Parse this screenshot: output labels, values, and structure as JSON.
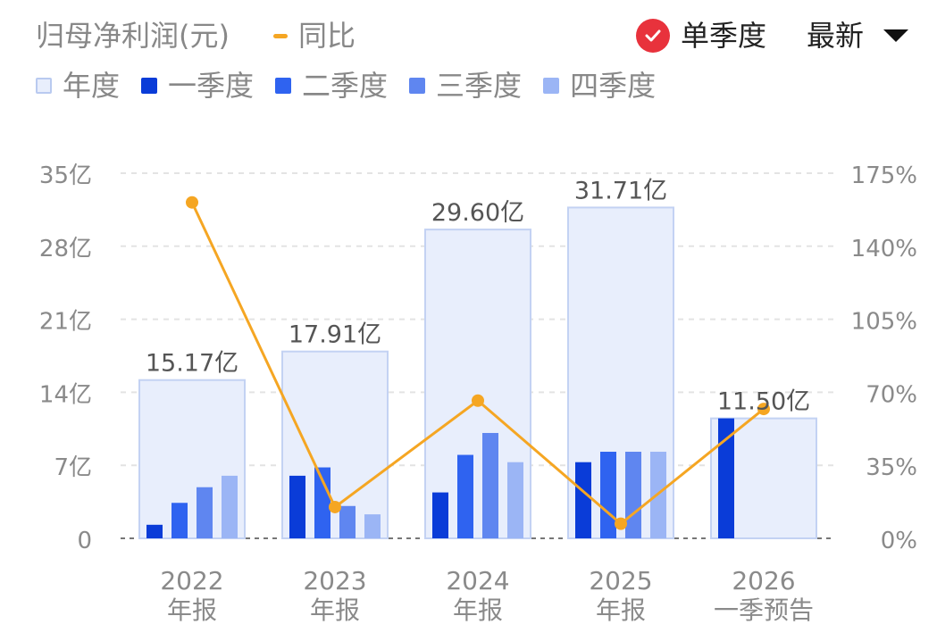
{
  "header": {
    "title": "归母净利润(元)",
    "yoy_legend": "同比",
    "single_quarter_label": "单季度",
    "latest_label": "最新"
  },
  "legend": [
    {
      "name": "年度",
      "color": "#E8EEFC",
      "border": "#B9CAF0"
    },
    {
      "name": "一季度",
      "color": "#0A3CD8"
    },
    {
      "name": "二季度",
      "color": "#2F63F0"
    },
    {
      "name": "三季度",
      "color": "#5F86F0"
    },
    {
      "name": "四季度",
      "color": "#9BB5F5"
    }
  ],
  "colors": {
    "annual_fill": "#E8EEFC",
    "annual_border": "#C3D2F3",
    "yoy_line": "#F5A623",
    "grid": "#E3E3E3",
    "axis_text": "#8A8A8A",
    "label_text": "#555555",
    "check_red": "#E8323C"
  },
  "chart_data": {
    "type": "bar",
    "categories": [
      {
        "year": "2022",
        "type": "年报"
      },
      {
        "year": "2023",
        "type": "年报"
      },
      {
        "year": "2024",
        "type": "年报"
      },
      {
        "year": "2025",
        "type": "年报"
      },
      {
        "year": "2026",
        "type": "一季预告"
      }
    ],
    "annual": [
      15.17,
      17.91,
      29.6,
      31.71,
      11.5
    ],
    "annual_labels": [
      "15.17亿",
      "17.91亿",
      "29.60亿",
      "31.71亿",
      "11.50亿"
    ],
    "series": [
      {
        "name": "一季度",
        "values": [
          1.3,
          6.0,
          4.4,
          7.3,
          11.5
        ]
      },
      {
        "name": "二季度",
        "values": [
          3.4,
          6.8,
          8.0,
          8.3,
          null
        ]
      },
      {
        "name": "三季度",
        "values": [
          4.9,
          3.1,
          10.1,
          8.3,
          null
        ]
      },
      {
        "name": "四季度",
        "values": [
          6.0,
          2.3,
          7.3,
          8.3,
          null
        ]
      }
    ],
    "yoy": {
      "name": "同比",
      "values": [
        161,
        15,
        66,
        7,
        62
      ]
    },
    "y_left": {
      "min": 0,
      "max": 35,
      "ticks": [
        0,
        7,
        14,
        21,
        28,
        35
      ],
      "tick_labels": [
        "0",
        "7亿",
        "14亿",
        "21亿",
        "28亿",
        "35亿"
      ]
    },
    "y_right": {
      "min": 0,
      "max": 175,
      "ticks": [
        0,
        35,
        70,
        105,
        140,
        175
      ],
      "tick_labels": [
        "0%",
        "35%",
        "70%",
        "105%",
        "140%",
        "175%"
      ]
    },
    "grid": true
  }
}
